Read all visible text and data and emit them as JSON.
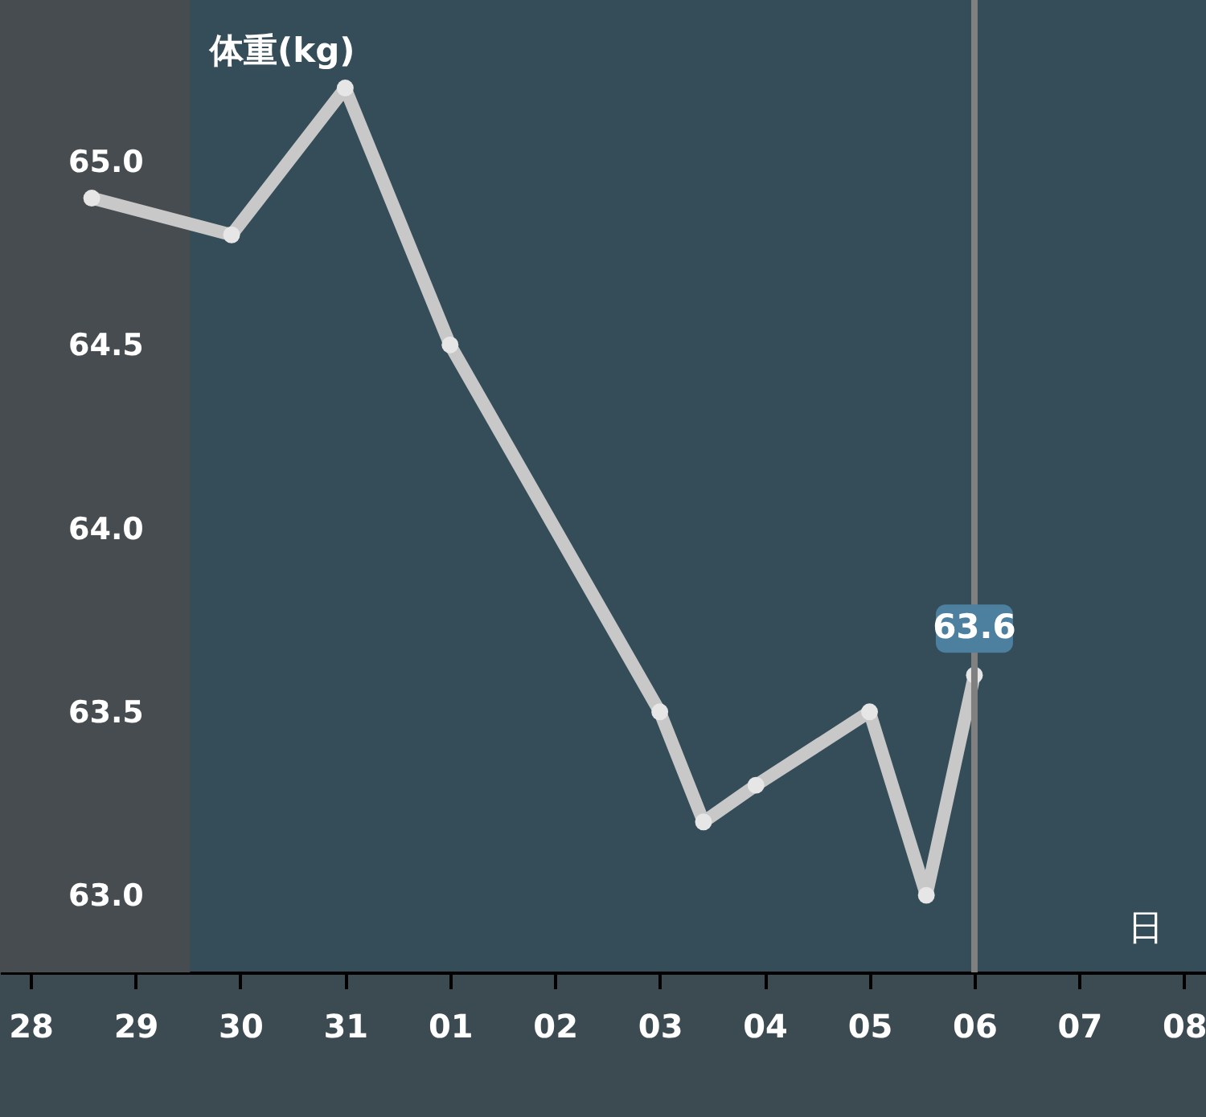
{
  "chart_data": {
    "type": "line",
    "xlabel": "日",
    "ylabel": "体重(kg)",
    "x": [
      "--07-28T14:00",
      "--07-29T22:00",
      "--07-31",
      "--08-01",
      "--08-03",
      "--08-03T10:00",
      "--08-03T22:00",
      "--08-05",
      "--08-05T13:00",
      "--08-06"
    ],
    "series": [
      {
        "color": "#c8c8c8",
        "values": [
          64.9,
          64.8,
          65.2,
          64.5,
          63.5,
          63.2,
          63.3,
          63.5,
          63.0,
          63.6
        ]
      }
    ],
    "xlim": [
      "--07-27T17:00",
      "--08-08T05:00"
    ],
    "xticks": [
      {
        "value": "--07-28",
        "label": "28"
      },
      {
        "value": "--07-29",
        "label": "29"
      },
      {
        "value": "--07-30",
        "label": "30"
      },
      {
        "value": "--07-31",
        "label": "31"
      },
      {
        "value": "--08-01",
        "label": "01"
      },
      {
        "value": "--08-02",
        "label": "02"
      },
      {
        "value": "--08-03",
        "label": "03"
      },
      {
        "value": "--08-04",
        "label": "04"
      },
      {
        "value": "--08-05",
        "label": "05"
      },
      {
        "value": "--08-06",
        "label": "06"
      },
      {
        "value": "--08-07",
        "label": "07"
      },
      {
        "value": "--08-08",
        "label": "08"
      }
    ],
    "ylim": [
      62.79,
      65.44
    ],
    "yticks": [
      {
        "value": 63,
        "label": "63.0"
      },
      {
        "value": 63.5,
        "label": "63.5"
      },
      {
        "value": 64,
        "label": "64.0"
      },
      {
        "value": 64.5,
        "label": "64.5"
      },
      {
        "value": 65,
        "label": "65.0"
      }
    ],
    "bands": [
      {
        "axis": "x",
        "from": "--07-27T17:00",
        "to": "--07-29T12:30",
        "color": "#464c4f"
      }
    ],
    "ref_lines": [
      {
        "axis": "x",
        "value": "--08-06",
        "color": "#808080"
      }
    ],
    "annotations": [
      {
        "text": "63.6",
        "x": "--08-06",
        "y": 63.6
      }
    ],
    "marker": "circle"
  }
}
